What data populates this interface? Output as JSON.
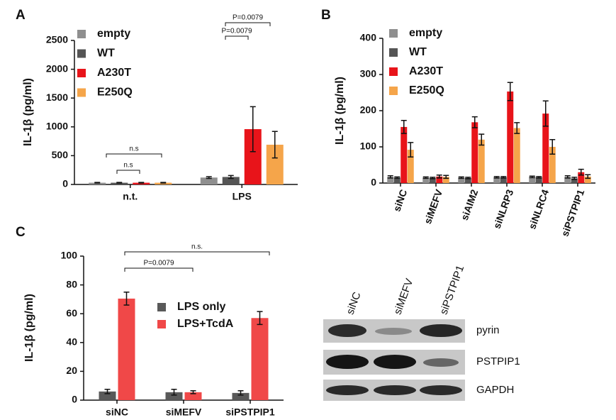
{
  "chart_data": [
    {
      "type": "bar",
      "panel": "A",
      "y_label": "IL-1β (pg/ml)",
      "categories": [
        "n.t.",
        "LPS"
      ],
      "series": [
        {
          "name": "empty",
          "color": "#8f8f8f",
          "values": [
            30,
            120
          ],
          "errors": [
            5,
            15
          ]
        },
        {
          "name": "WT",
          "color": "#555555",
          "values": [
            30,
            130
          ],
          "errors": [
            5,
            25
          ]
        },
        {
          "name": "A230T",
          "color": "#e8141a",
          "values": [
            30,
            960
          ],
          "errors": [
            5,
            390
          ]
        },
        {
          "name": "E250Q",
          "color": "#f5a54a",
          "values": [
            30,
            690
          ],
          "errors": [
            5,
            230
          ]
        }
      ],
      "ylim": [
        0,
        2500
      ],
      "yticks": [
        0,
        500,
        1000,
        1500,
        2000,
        2500
      ],
      "annotations": [
        "n.s",
        "n.s",
        "P=0.0079",
        "P=0.0079"
      ]
    },
    {
      "type": "bar",
      "panel": "B",
      "y_label": "IL-1β (pg/ml)",
      "categories": [
        "siNC",
        "siMEFV",
        "siAIM2",
        "siNLRP3",
        "siNLRC4",
        "siPSTPIP1"
      ],
      "series": [
        {
          "name": "empty",
          "color": "#8f8f8f",
          "values": [
            17,
            15,
            15,
            16,
            17,
            17
          ],
          "errors": [
            3,
            2,
            2,
            2,
            2,
            3
          ]
        },
        {
          "name": "WT",
          "color": "#555555",
          "values": [
            15,
            14,
            14,
            16,
            16,
            13
          ],
          "errors": [
            2,
            2,
            2,
            2,
            2,
            3
          ]
        },
        {
          "name": "A230T",
          "color": "#e8141a",
          "values": [
            155,
            18,
            168,
            253,
            192,
            30
          ],
          "errors": [
            18,
            4,
            15,
            25,
            35,
            8
          ]
        },
        {
          "name": "E250Q",
          "color": "#f5a54a",
          "values": [
            92,
            17,
            120,
            152,
            100,
            18
          ],
          "errors": [
            20,
            4,
            15,
            15,
            20,
            5
          ]
        }
      ],
      "ylim": [
        0,
        400
      ],
      "yticks": [
        0,
        100,
        200,
        300,
        400
      ],
      "annotations": []
    },
    {
      "type": "bar",
      "panel": "C",
      "y_label": "IL-1β (pg/ml)",
      "categories": [
        "siNC",
        "siMEFV",
        "siPSTPIP1"
      ],
      "series": [
        {
          "name": "LPS only",
          "color": "#595959",
          "values": [
            6,
            5.5,
            5
          ],
          "errors": [
            1.5,
            2,
            1.5
          ]
        },
        {
          "name": "LPS+TcdA",
          "color": "#f04848",
          "values": [
            70.5,
            5.5,
            57
          ],
          "errors": [
            4.5,
            1,
            4.5
          ]
        }
      ],
      "ylim": [
        0,
        100
      ],
      "yticks": [
        0,
        20,
        40,
        60,
        80,
        100
      ],
      "annotations": [
        "P=0.0079",
        "n.s."
      ]
    }
  ],
  "blot": {
    "lanes": [
      "siNC",
      "siMEFV",
      "siPSTPIP1"
    ],
    "rows": [
      "pyrin",
      "PSTPIP1",
      "GAPDH"
    ]
  }
}
